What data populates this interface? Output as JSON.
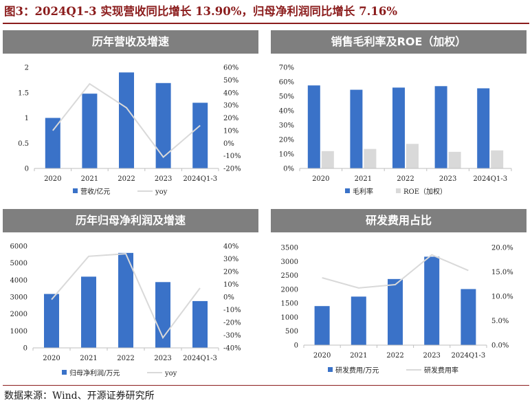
{
  "figure_title": "图3：2024Q1-3 实现营收同比增长 13.90%，归母净利润同比增长 7.16%",
  "source_note": "数据来源：Wind、开源证券研究所",
  "colors": {
    "bar": "#3a72c8",
    "bar_light": "#d9d9d9",
    "line": "#d9d9d9",
    "header": "#7f7f7f",
    "title": "#8b1c1c"
  },
  "chart_data": [
    {
      "type": "bar",
      "title": "历年营收及增速",
      "categories": [
        "2020",
        "2021",
        "2022",
        "2023",
        "2024Q1-3"
      ],
      "y_ticks": [
        "0",
        "0.5",
        "1",
        "1.5",
        "2"
      ],
      "y_range": [
        0,
        2
      ],
      "y2_ticks": [
        "-20%",
        "-10%",
        "0%",
        "10%",
        "20%",
        "30%",
        "40%",
        "50%",
        "60%"
      ],
      "y2_range": [
        -20,
        60
      ],
      "series": [
        {
          "name": "营收/亿元",
          "kind": "bar",
          "axis": "left",
          "values": [
            1.0,
            1.48,
            1.9,
            1.69,
            1.3
          ]
        },
        {
          "name": "yoy",
          "kind": "line",
          "axis": "right",
          "values": [
            10,
            47,
            28,
            -11,
            14
          ]
        }
      ]
    },
    {
      "type": "bar",
      "title": "销售毛利率及ROE（加权）",
      "categories": [
        "2020",
        "2021",
        "2022",
        "2023",
        "2024Q1-3"
      ],
      "y_ticks": [
        "0%",
        "10%",
        "20%",
        "30%",
        "40%",
        "50%",
        "60%",
        "70%"
      ],
      "y_range": [
        0,
        70
      ],
      "series": [
        {
          "name": "毛利率",
          "kind": "bar",
          "axis": "left",
          "values": [
            57.5,
            54.5,
            56,
            57,
            55.5
          ]
        },
        {
          "name": "ROE（加权）",
          "kind": "bar",
          "axis": "left",
          "values": [
            12,
            13.5,
            17,
            11.5,
            12.5
          ]
        }
      ]
    },
    {
      "type": "bar",
      "title": "历年归母净利润及增速",
      "categories": [
        "2020",
        "2021",
        "2022",
        "2023",
        "2024Q1-3"
      ],
      "y_ticks": [
        "0",
        "1000",
        "2000",
        "3000",
        "4000",
        "5000",
        "6000"
      ],
      "y_range": [
        0,
        6000
      ],
      "y2_ticks": [
        "-40%",
        "-30%",
        "-20%",
        "-10%",
        "0%",
        "10%",
        "20%",
        "30%",
        "40%"
      ],
      "y2_range": [
        -40,
        40
      ],
      "series": [
        {
          "name": "归母净利润/万元",
          "kind": "bar",
          "axis": "left",
          "values": [
            3180,
            4200,
            5600,
            3880,
            2760
          ]
        },
        {
          "name": "yoy",
          "kind": "line",
          "axis": "right",
          "values": [
            -2,
            32,
            34,
            -32,
            7
          ]
        }
      ]
    },
    {
      "type": "bar",
      "title": "研发费用占比",
      "categories": [
        "2020",
        "2021",
        "2022",
        "2023",
        "2024Q1-3"
      ],
      "y_ticks": [
        "0",
        "500",
        "1000",
        "1500",
        "2000",
        "2500",
        "3000",
        "3500"
      ],
      "y_range": [
        0,
        3500
      ],
      "y2_ticks": [
        "0.0%",
        "5.0%",
        "10.0%",
        "15.0%",
        "20.0%"
      ],
      "y2_range": [
        0,
        20
      ],
      "series": [
        {
          "name": "研发费用/万元",
          "kind": "bar",
          "axis": "left",
          "values": [
            1400,
            1740,
            2370,
            3170,
            2010
          ]
        },
        {
          "name": "研发费用率",
          "kind": "line",
          "axis": "right",
          "values": [
            13.8,
            11.7,
            12.4,
            18.5,
            15.3
          ]
        }
      ]
    }
  ]
}
